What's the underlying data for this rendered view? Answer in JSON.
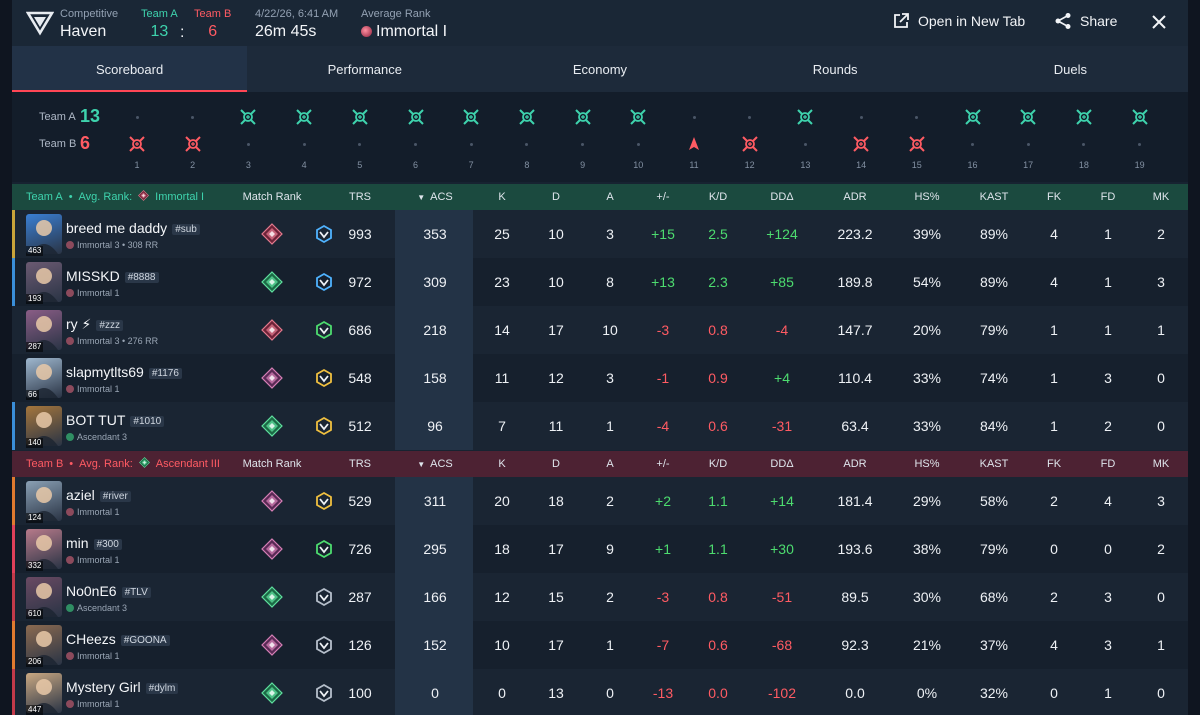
{
  "header": {
    "mode": "Competitive",
    "map": "Haven",
    "team_a_label": "Team A",
    "team_b_label": "Team B",
    "team_a_score": "13",
    "team_b_score": "6",
    "score_sep": ":",
    "datetime": "4/22/26, 6:41 AM",
    "duration": "26m 45s",
    "avg_rank_label": "Average Rank",
    "avg_rank": "Immortal I",
    "open_new_tab": "Open in New Tab",
    "share": "Share"
  },
  "tabs": [
    "Scoreboard",
    "Performance",
    "Economy",
    "Rounds",
    "Duels"
  ],
  "timeline": {
    "team_a_label": "Team A",
    "team_a_score": "13",
    "team_b_label": "Team B",
    "team_b_score": "6",
    "round_numbers": [
      "1",
      "2",
      "3",
      "4",
      "5",
      "6",
      "7",
      "8",
      "9",
      "10",
      "11",
      "12",
      "13",
      "14",
      "15",
      "16",
      "17",
      "18",
      "19"
    ],
    "winners": [
      "B",
      "B",
      "A",
      "A",
      "A",
      "A",
      "A",
      "A",
      "A",
      "A",
      "B",
      "B",
      "A",
      "B",
      "B",
      "A",
      "A",
      "A",
      "A"
    ],
    "win_types": [
      "elim",
      "elim",
      "elim",
      "elim",
      "elim",
      "elim",
      "elim",
      "elim",
      "elim",
      "elim",
      "spike",
      "elim",
      "elim",
      "elim",
      "elim",
      "elim",
      "elim",
      "elim",
      "elim"
    ]
  },
  "columns": {
    "match_rank": "Match Rank",
    "trs": "TRS",
    "acs": "ACS",
    "k": "K",
    "d": "D",
    "a": "A",
    "pm": "+/-",
    "kd": "K/D",
    "dd": "DDΔ",
    "adr": "ADR",
    "hs": "HS%",
    "kast": "KAST",
    "fk": "FK",
    "fd": "FD",
    "mk": "MK"
  },
  "team_a": {
    "name": "Team A",
    "sep": "•",
    "avg_label": "Avg. Rank:",
    "avg_rank": "Immortal I",
    "color": "#3ed3ad",
    "players": [
      {
        "name": "breed me daddy",
        "tag": "#sub",
        "rank": "Immortal 3 • 308 RR",
        "level": "463",
        "agent_color": "#3a7fd4",
        "badge": "imm",
        "trs_icon": "blue",
        "trs": "993",
        "acs": "353",
        "k": "25",
        "d": "10",
        "a": "3",
        "pm": "+15",
        "kd": "2.5",
        "dd": "+124",
        "adr": "223.2",
        "hs": "39%",
        "kast": "89%",
        "fk": "4",
        "fd": "1",
        "mk": "2",
        "accent": "#c9a43a"
      },
      {
        "name": "MISSKD",
        "tag": "#8888",
        "rank": "Immortal 1",
        "level": "193",
        "agent_color": "#6b5a72",
        "badge": "asc",
        "trs_icon": "blue",
        "trs": "972",
        "acs": "309",
        "k": "23",
        "d": "10",
        "a": "8",
        "pm": "+13",
        "kd": "2.3",
        "dd": "+85",
        "adr": "189.8",
        "hs": "54%",
        "kast": "89%",
        "fk": "4",
        "fd": "1",
        "mk": "3",
        "accent": "#3a8ed8"
      },
      {
        "name": "ry ⚡",
        "tag": "#zzz",
        "rank": "Immortal 3 • 276 RR",
        "level": "287",
        "agent_color": "#8a5d86",
        "badge": "imm",
        "trs_icon": "green",
        "trs": "686",
        "acs": "218",
        "k": "14",
        "d": "17",
        "a": "10",
        "pm": "-3",
        "kd": "0.8",
        "dd": "-4",
        "adr": "147.7",
        "hs": "20%",
        "kast": "79%",
        "fk": "1",
        "fd": "1",
        "mk": "1",
        "accent": ""
      },
      {
        "name": "slapmytlts69",
        "tag": "#1176",
        "rank": "Immortal 1",
        "level": "66",
        "agent_color": "#9fb8cf",
        "badge": "rad",
        "trs_icon": "gold",
        "trs": "548",
        "acs": "158",
        "k": "11",
        "d": "12",
        "a": "3",
        "pm": "-1",
        "kd": "0.9",
        "dd": "+4",
        "adr": "110.4",
        "hs": "33%",
        "kast": "74%",
        "fk": "1",
        "fd": "3",
        "mk": "0",
        "accent": ""
      },
      {
        "name": "BOT TUT",
        "tag": "#1010",
        "rank": "Ascendant 3",
        "level": "140",
        "agent_color": "#a5763c",
        "badge": "asc",
        "trs_icon": "gold",
        "trs": "512",
        "acs": "96",
        "k": "7",
        "d": "11",
        "a": "1",
        "pm": "-4",
        "kd": "0.6",
        "dd": "-31",
        "adr": "63.4",
        "hs": "33%",
        "kast": "84%",
        "fk": "1",
        "fd": "2",
        "mk": "0",
        "accent": "#3a8ed8"
      }
    ]
  },
  "team_b": {
    "name": "Team B",
    "sep": "•",
    "avg_label": "Avg. Rank:",
    "avg_rank": "Ascendant III",
    "color": "#ff5b63",
    "players": [
      {
        "name": "aziel",
        "tag": "#river",
        "rank": "Immortal 1",
        "level": "124",
        "agent_color": "#8aa0b4",
        "badge": "rad",
        "trs_icon": "gold",
        "trs": "529",
        "acs": "311",
        "k": "20",
        "d": "18",
        "a": "2",
        "pm": "+2",
        "kd": "1.1",
        "dd": "+14",
        "adr": "181.4",
        "hs": "29%",
        "kast": "58%",
        "fk": "2",
        "fd": "4",
        "mk": "3",
        "accent": "#e07a2f"
      },
      {
        "name": "min",
        "tag": "#300",
        "rank": "Immortal 1",
        "level": "332",
        "agent_color": "#b77a8a",
        "badge": "rad",
        "trs_icon": "green",
        "trs": "726",
        "acs": "295",
        "k": "18",
        "d": "17",
        "a": "9",
        "pm": "+1",
        "kd": "1.1",
        "dd": "+30",
        "adr": "193.6",
        "hs": "38%",
        "kast": "79%",
        "fk": "0",
        "fd": "0",
        "mk": "2",
        "accent": "#e0405a"
      },
      {
        "name": "No0nE6",
        "tag": "#TLV",
        "rank": "Ascendant 3",
        "level": "610",
        "agent_color": "#6a4a63",
        "badge": "asc",
        "trs_icon": "gray",
        "trs": "287",
        "acs": "166",
        "k": "12",
        "d": "15",
        "a": "2",
        "pm": "-3",
        "kd": "0.8",
        "dd": "-51",
        "adr": "89.5",
        "hs": "30%",
        "kast": "68%",
        "fk": "2",
        "fd": "3",
        "mk": "0",
        "accent": "#c23a4a"
      },
      {
        "name": "CHeezs",
        "tag": "#GOONA",
        "rank": "Immortal 1",
        "level": "206",
        "agent_color": "#8b6a50",
        "badge": "rad",
        "trs_icon": "gray",
        "trs": "126",
        "acs": "152",
        "k": "10",
        "d": "17",
        "a": "1",
        "pm": "-7",
        "kd": "0.6",
        "dd": "-68",
        "adr": "92.3",
        "hs": "21%",
        "kast": "37%",
        "fk": "4",
        "fd": "3",
        "mk": "1",
        "accent": "#e07a2f"
      },
      {
        "name": "Mystery Girl",
        "tag": "#dylm",
        "rank": "Immortal 1",
        "level": "447",
        "agent_color": "#c9a882",
        "badge": "asc",
        "trs_icon": "gray",
        "trs": "100",
        "acs": "0",
        "k": "0",
        "d": "13",
        "a": "0",
        "pm": "-13",
        "kd": "0.0",
        "dd": "-102",
        "adr": "0.0",
        "hs": "0%",
        "kast": "32%",
        "fk": "0",
        "fd": "1",
        "mk": "0",
        "accent": "#c23a4a"
      }
    ]
  }
}
